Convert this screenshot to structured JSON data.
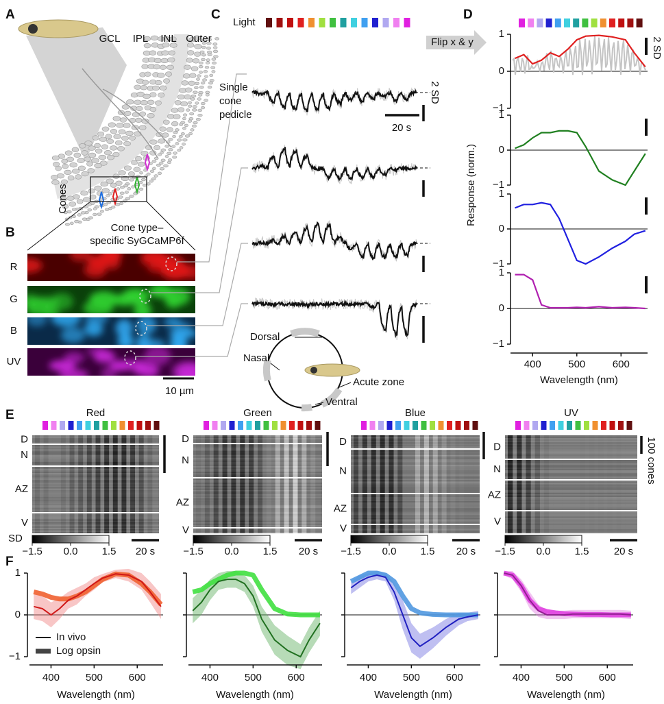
{
  "panel_labels": [
    "A",
    "B",
    "C",
    "D",
    "E",
    "F"
  ],
  "stimulus_colors": [
    "#e020e0",
    "#f080f0",
    "#b0a8f0",
    "#2020d0",
    "#40a0f0",
    "#40d0e0",
    "#20a0a0",
    "#40c040",
    "#a0e040",
    "#f09030",
    "#e02020",
    "#c01010",
    "#a01010",
    "#601010"
  ],
  "panel_a": {
    "layers": [
      "GCL",
      "IPL",
      "INL",
      "Outer"
    ],
    "cones_label": "Cones"
  },
  "panel_b": {
    "title_lines": [
      "Cone type–",
      "specific SyGCaMP6f"
    ],
    "rows": [
      "R",
      "G",
      "B",
      "UV"
    ],
    "row_colors": [
      "#e01818",
      "#30d030",
      "#30a8f0",
      "#c828d8"
    ],
    "row_backgrounds": [
      "#4a0000",
      "#0a400a",
      "#0a2a48",
      "#3a003a"
    ],
    "scale_bar": "10 µm"
  },
  "panel_c": {
    "light_label": "Light",
    "trace_label": [
      "Single",
      "cone",
      "pedicle"
    ],
    "sd_bar": "2 SD",
    "time_bar": "20 s",
    "compass": [
      "Dorsal",
      "Nasal",
      "Acute zone",
      "Ventral"
    ]
  },
  "chart_data": [
    {
      "type": "line",
      "xlabel": "Wavelength (nm)",
      "ylabel": "Response (norm.)",
      "annotation": "Flip x & y",
      "scale_label": "2 SD",
      "x": [
        360,
        380,
        400,
        420,
        440,
        460,
        480,
        500,
        520,
        550,
        580,
        610,
        630,
        655
      ],
      "xlim": [
        350,
        660
      ],
      "xticks": [
        400,
        500,
        600
      ],
      "ylim": [
        -1,
        1
      ],
      "yticks": [
        {
          "value": -1,
          "label": "−1"
        },
        0,
        1
      ],
      "series": [
        {
          "color": "#e02020",
          "values": [
            0.35,
            0.45,
            0.2,
            0.3,
            0.5,
            0.4,
            0.6,
            0.85,
            0.95,
            0.97,
            0.93,
            0.85,
            0.5,
            0.12
          ]
        },
        {
          "color": "#208020",
          "values": [
            0.05,
            0.15,
            0.35,
            0.5,
            0.5,
            0.55,
            0.55,
            0.5,
            0.1,
            -0.6,
            -0.85,
            -1.0,
            -0.6,
            -0.1
          ]
        },
        {
          "color": "#2020e0",
          "values": [
            0.6,
            0.7,
            0.7,
            0.75,
            0.7,
            0.3,
            -0.3,
            -0.9,
            -1.0,
            -0.8,
            -0.55,
            -0.35,
            -0.15,
            -0.05
          ]
        },
        {
          "color": "#b020b0",
          "values": [
            0.95,
            0.95,
            0.8,
            0.1,
            0.02,
            0.02,
            0.02,
            0.03,
            0.02,
            0.05,
            0.02,
            0.03,
            0.02,
            0.0
          ]
        }
      ]
    },
    {
      "type": "line",
      "xlabel": "Wavelength (nm)",
      "legend": [
        "In vivo",
        "Log opsin"
      ],
      "x": [
        360,
        380,
        400,
        420,
        440,
        460,
        480,
        500,
        520,
        550,
        580,
        610,
        630,
        655
      ],
      "xlim": [
        350,
        660
      ],
      "xticks": [
        400,
        500,
        600
      ],
      "ylim": [
        -1,
        1
      ],
      "yticks": [
        {
          "value": -1,
          "label": "−1"
        },
        0,
        1
      ],
      "cones": [
        {
          "in_vivo": {
            "color": "#d01818",
            "band_color": "#f08080",
            "values": [
              0.2,
              0.15,
              0.0,
              0.15,
              0.35,
              0.45,
              0.6,
              0.75,
              0.88,
              0.98,
              0.95,
              0.8,
              0.55,
              0.2
            ],
            "sd": [
              0.3,
              0.3,
              0.3,
              0.25,
              0.2,
              0.2,
              0.15,
              0.15,
              0.1,
              0.1,
              0.15,
              0.2,
              0.25,
              0.3
            ]
          },
          "opsin": {
            "color": "#f06030",
            "values": [
              0.55,
              0.5,
              0.42,
              0.38,
              0.38,
              0.45,
              0.55,
              0.7,
              0.85,
              0.98,
              0.95,
              0.75,
              0.55,
              0.25
            ]
          }
        },
        {
          "in_vivo": {
            "color": "#207020",
            "band_color": "#60b060",
            "values": [
              0.1,
              0.3,
              0.6,
              0.8,
              0.85,
              0.85,
              0.75,
              0.45,
              -0.1,
              -0.6,
              -0.85,
              -1.0,
              -0.6,
              -0.2
            ],
            "sd": [
              0.3,
              0.3,
              0.25,
              0.2,
              0.2,
              0.2,
              0.2,
              0.25,
              0.3,
              0.35,
              0.35,
              0.3,
              0.3,
              0.3
            ]
          },
          "opsin": {
            "color": "#40e040",
            "values": [
              0.55,
              0.6,
              0.75,
              0.85,
              0.95,
              1.0,
              1.0,
              0.95,
              0.6,
              0.15,
              0.02,
              0,
              0,
              0
            ]
          }
        },
        {
          "in_vivo": {
            "color": "#2020c0",
            "band_color": "#7070e0",
            "values": [
              0.65,
              0.8,
              0.9,
              0.95,
              0.9,
              0.55,
              0.0,
              -0.55,
              -0.75,
              -0.55,
              -0.3,
              -0.1,
              -0.05,
              0.0
            ],
            "sd": [
              0.15,
              0.15,
              0.1,
              0.1,
              0.1,
              0.2,
              0.35,
              0.35,
              0.3,
              0.25,
              0.2,
              0.15,
              0.1,
              0.1
            ]
          },
          "opsin": {
            "color": "#5098e0",
            "values": [
              0.8,
              0.9,
              1.0,
              1.0,
              0.95,
              0.8,
              0.45,
              0.15,
              0.05,
              0.01,
              0,
              0,
              0,
              0
            ]
          }
        },
        {
          "in_vivo": {
            "color": "#902090",
            "band_color": "#e080e0",
            "values": [
              1.0,
              0.95,
              0.7,
              0.35,
              0.1,
              0.0,
              0.0,
              0.0,
              0.02,
              0.02,
              0.02,
              0.02,
              0.02,
              0.0
            ],
            "sd": [
              0.05,
              0.1,
              0.15,
              0.2,
              0.15,
              0.1,
              0.1,
              0.1,
              0.1,
              0.1,
              0.1,
              0.1,
              0.1,
              0.1
            ]
          },
          "opsin": {
            "color": "#e040e0",
            "values": [
              1.0,
              0.95,
              0.7,
              0.35,
              0.15,
              0.08,
              0.05,
              0.03,
              0.02,
              0.01,
              0.01,
              0,
              0,
              0
            ]
          }
        }
      ]
    },
    {
      "type": "heatmap",
      "panels": [
        {
          "title": "Red",
          "zones": [
            "D",
            "N",
            "AZ",
            "V"
          ]
        },
        {
          "title": "Green",
          "zones": [
            "D",
            "N",
            "AZ",
            "V"
          ]
        },
        {
          "title": "Blue",
          "zones": [
            "D",
            "N",
            "AZ",
            "V"
          ]
        },
        {
          "title": "UV",
          "zones": [
            "D",
            "N",
            "AZ",
            "V"
          ]
        }
      ],
      "colorbar": {
        "label": "SD",
        "lim": [
          -1.5,
          1.5
        ],
        "ticks": [
          {
            "value": -1.5,
            "label": "−1.5"
          },
          {
            "value": 0,
            "label": "0.0"
          },
          1.5
        ]
      },
      "time_bar": "20 s",
      "cell_bar": "100 cones"
    }
  ]
}
